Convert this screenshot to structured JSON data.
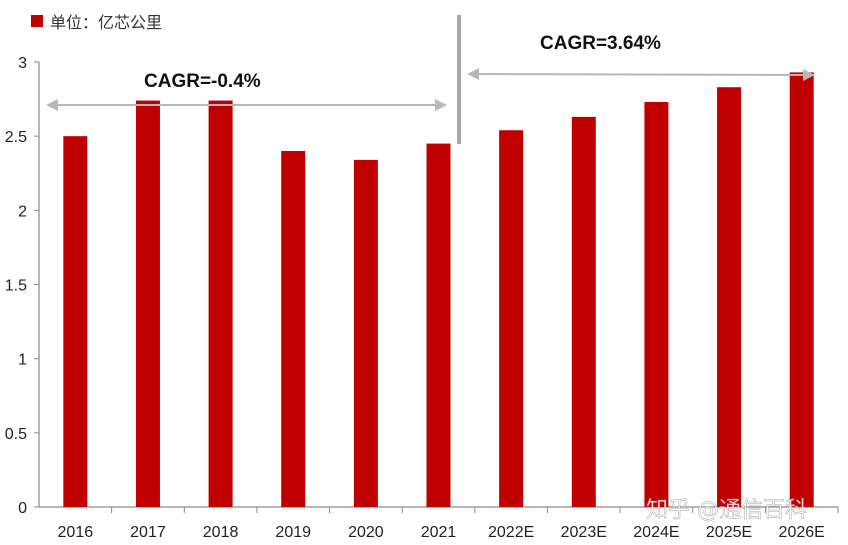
{
  "chart_data": {
    "type": "bar",
    "categories": [
      "2016",
      "2017",
      "2018",
      "2019",
      "2020",
      "2021",
      "2022E",
      "2023E",
      "2024E",
      "2025E",
      "2026E"
    ],
    "values": [
      2.5,
      2.74,
      2.74,
      2.4,
      2.34,
      2.45,
      2.54,
      2.63,
      2.73,
      2.83,
      2.93
    ],
    "ylim": [
      0,
      3
    ],
    "yticks": [
      "0",
      "0.5",
      "1",
      "1.5",
      "2",
      "2.5",
      "3"
    ],
    "bar_color": "#C00000",
    "legend": {
      "label": "单位：亿芯公里",
      "placement": "top-left"
    },
    "annotations": [
      {
        "text": "CAGR=-0.4%",
        "from": "2016",
        "to": "2021"
      },
      {
        "text": "CAGR=3.64%",
        "from": "2022E",
        "to": "2026E"
      }
    ],
    "grid": false
  },
  "watermark": "知乎 @通信百科"
}
